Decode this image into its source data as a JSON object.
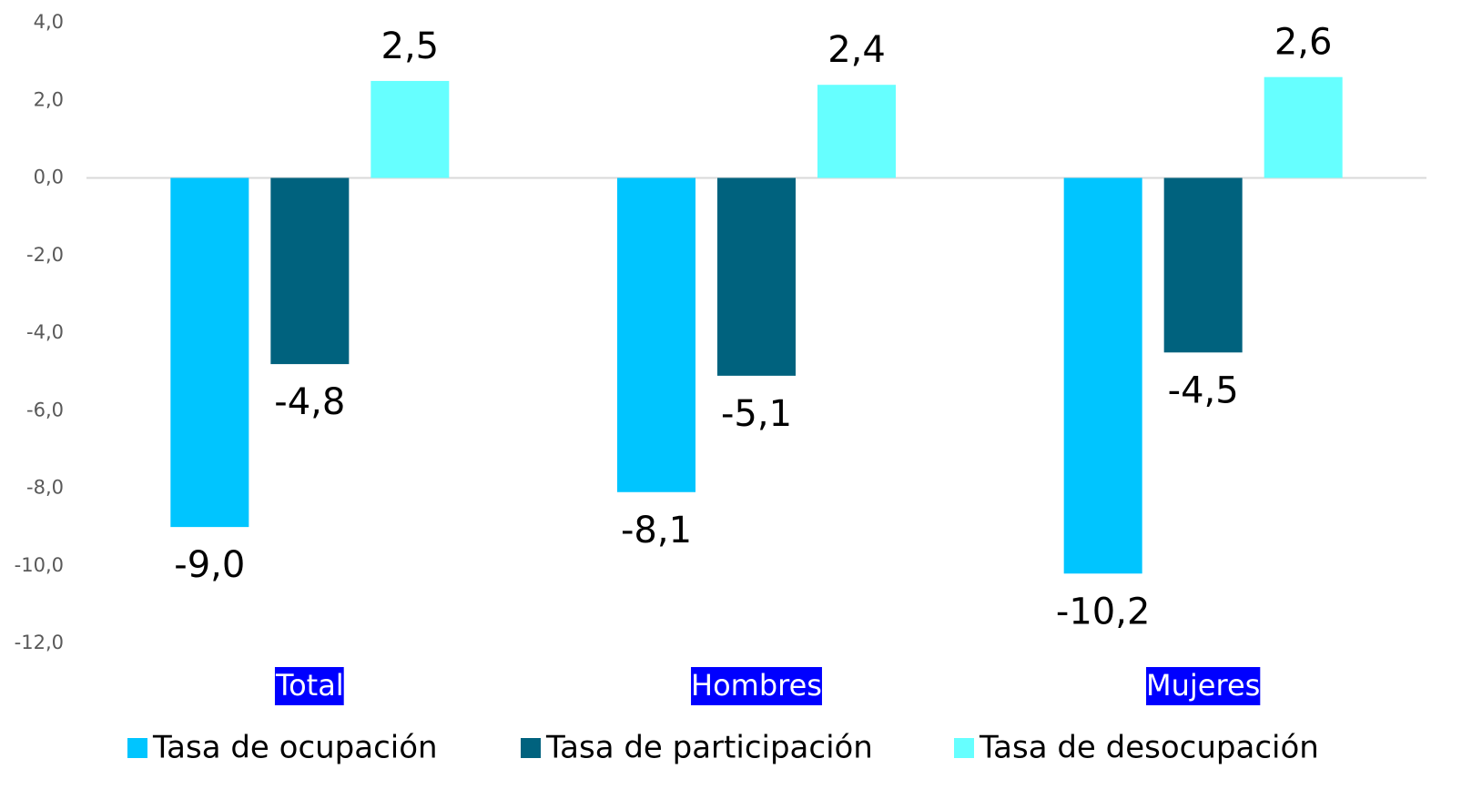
{
  "chart_data": {
    "type": "bar",
    "categories": [
      "Total",
      "Hombres",
      "Mujeres"
    ],
    "series": [
      {
        "name": "Tasa de ocupación",
        "color": "#00c5ff",
        "values": [
          -9.0,
          -8.1,
          -10.2
        ],
        "value_labels": [
          "-9,0",
          "-8,1",
          "-10,2"
        ]
      },
      {
        "name": "Tasa de participación",
        "color": "#00627e",
        "values": [
          -4.8,
          -5.1,
          -4.5
        ],
        "value_labels": [
          "-4,8",
          "-5,1",
          "-4,5"
        ]
      },
      {
        "name": "Tasa de desocupación",
        "color": "#66ffff",
        "values": [
          2.5,
          2.4,
          2.6
        ],
        "value_labels": [
          "2,5",
          "2,4",
          "2,6"
        ]
      }
    ],
    "ylim": [
      -12,
      4
    ],
    "yticks": [
      {
        "value": -12,
        "label": "-12,0"
      },
      {
        "value": -10,
        "label": "-10,0"
      },
      {
        "value": -8,
        "label": "-8,0"
      },
      {
        "value": -6,
        "label": "-6,0"
      },
      {
        "value": -4,
        "label": "-4,0"
      },
      {
        "value": -2,
        "label": "-2,0"
      },
      {
        "value": 0,
        "label": "0,0"
      },
      {
        "value": 2,
        "label": "2,0"
      },
      {
        "value": 4,
        "label": "4,0"
      }
    ],
    "grid": false,
    "legend": "bottom"
  }
}
